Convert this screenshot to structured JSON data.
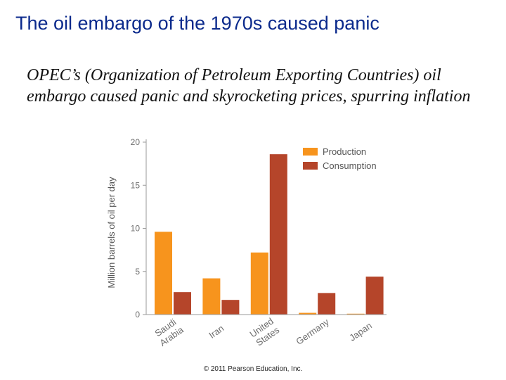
{
  "slide": {
    "title": "The oil embargo of the 1970s caused panic",
    "body": "OPEC’s (Organization of Petroleum Exporting Countries) oil embargo caused panic and skyrocketing prices, spurring inflation",
    "copyright": "© 2011 Pearson Education, Inc."
  },
  "chart_data": {
    "type": "bar",
    "title": "",
    "xlabel": "",
    "ylabel": "Million barrels of oil per day",
    "categories": [
      "Saudi Arabia",
      "Iran",
      "United States",
      "Germany",
      "Japan"
    ],
    "category_lines": [
      [
        "Saudi",
        "Arabia"
      ],
      [
        "Iran"
      ],
      [
        "United",
        "States"
      ],
      [
        "Germany"
      ],
      [
        "Japan"
      ]
    ],
    "series": [
      {
        "name": "Production",
        "color": "#f7941d",
        "values": [
          9.6,
          4.2,
          7.2,
          0.2,
          0.1
        ]
      },
      {
        "name": "Consumption",
        "color": "#b5452a",
        "values": [
          2.6,
          1.7,
          18.6,
          2.5,
          4.4
        ]
      }
    ],
    "ylim": [
      0,
      20
    ],
    "yticks": [
      0,
      5,
      10,
      15,
      20
    ],
    "grid": false,
    "legend_position": "top-right"
  }
}
